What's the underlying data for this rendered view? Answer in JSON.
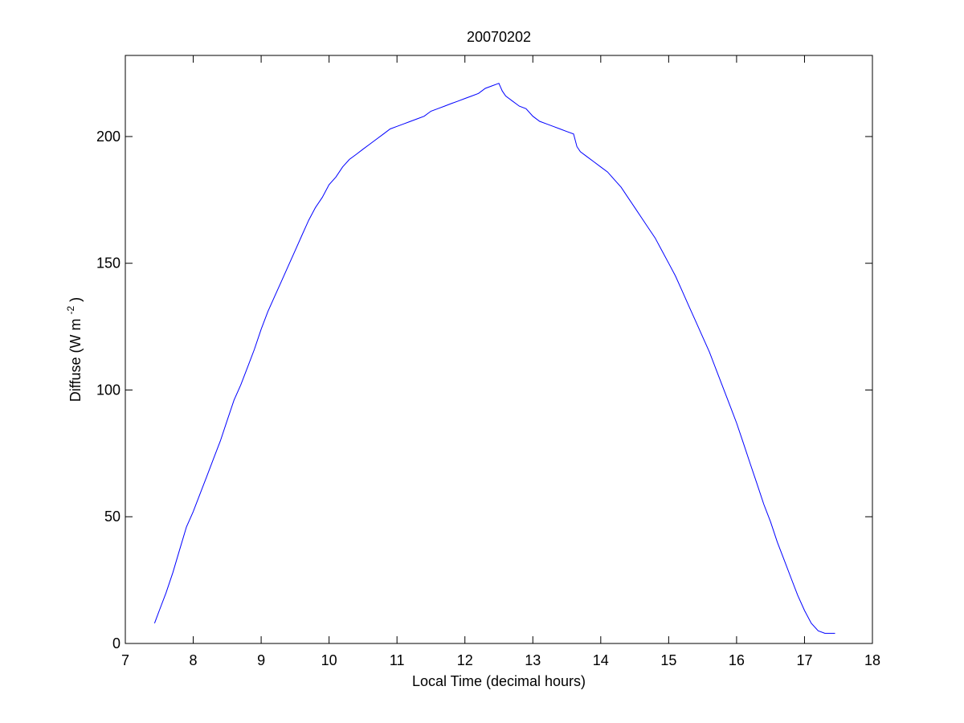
{
  "chart_data": {
    "type": "line",
    "title": "20070202",
    "xlabel": "Local Time (decimal hours)",
    "ylabel_main": "Diffuse (W m",
    "ylabel_sup": "-2",
    "ylabel_close": ")",
    "xlim": [
      7,
      18
    ],
    "ylim": [
      0,
      232
    ],
    "xticks": [
      7,
      8,
      9,
      10,
      11,
      12,
      13,
      14,
      15,
      16,
      17,
      18
    ],
    "yticks": [
      0,
      50,
      100,
      150,
      200
    ],
    "grid": false,
    "line_color": "#0000ff",
    "series": [
      {
        "x": [
          7.43,
          7.5,
          7.6,
          7.7,
          7.8,
          7.9,
          8.0,
          8.1,
          8.2,
          8.3,
          8.4,
          8.5,
          8.6,
          8.7,
          8.8,
          8.9,
          9.0,
          9.1,
          9.2,
          9.3,
          9.4,
          9.5,
          9.6,
          9.7,
          9.8,
          9.9,
          10.0,
          10.1,
          10.2,
          10.3,
          10.4,
          10.5,
          10.6,
          10.7,
          10.8,
          10.9,
          11.0,
          11.1,
          11.2,
          11.3,
          11.4,
          11.5,
          11.6,
          11.7,
          11.8,
          11.9,
          12.0,
          12.1,
          12.2,
          12.3,
          12.4,
          12.5,
          12.55,
          12.6,
          12.7,
          12.8,
          12.9,
          13.0,
          13.1,
          13.2,
          13.3,
          13.4,
          13.5,
          13.6,
          13.65,
          13.7,
          13.8,
          13.9,
          14.0,
          14.1,
          14.2,
          14.3,
          14.4,
          14.5,
          14.6,
          14.7,
          14.8,
          14.9,
          15.0,
          15.1,
          15.2,
          15.3,
          15.4,
          15.5,
          15.6,
          15.7,
          15.8,
          15.9,
          16.0,
          16.1,
          16.2,
          16.3,
          16.4,
          16.5,
          16.6,
          16.7,
          16.8,
          16.9,
          17.0,
          17.1,
          17.2,
          17.3,
          17.4,
          17.45
        ],
        "y": [
          8,
          13,
          20,
          28,
          37,
          46,
          52,
          59,
          66,
          73,
          80,
          88,
          96,
          102,
          109,
          116,
          124,
          131,
          137,
          143,
          149,
          155,
          161,
          167,
          172,
          176,
          181,
          184,
          188,
          191,
          193,
          195,
          197,
          199,
          201,
          203,
          204,
          205,
          206,
          207,
          208,
          210,
          211,
          212,
          213,
          214,
          215,
          216,
          217,
          219,
          220,
          221,
          218,
          216,
          214,
          212,
          211,
          208,
          206,
          205,
          204,
          203,
          202,
          201,
          196,
          194,
          192,
          190,
          188,
          186,
          183,
          180,
          176,
          172,
          168,
          164,
          160,
          155,
          150,
          145,
          139,
          133,
          127,
          121,
          115,
          108,
          101,
          94,
          87,
          79,
          71,
          63,
          55,
          48,
          40,
          33,
          26,
          19,
          13,
          8,
          5,
          4,
          4,
          4
        ]
      }
    ]
  }
}
